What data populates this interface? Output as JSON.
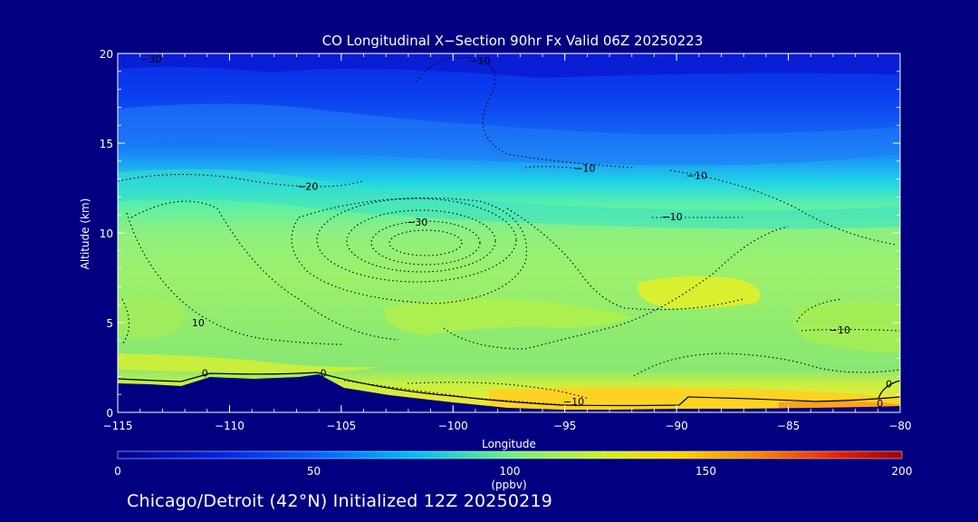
{
  "chart_data": {
    "type": "heatmap",
    "title": "CO Longitudinal X−Section 90hr  Fx Valid 06Z 20250223",
    "xlabel": "Longitude",
    "ylabel": "Altitude (km)",
    "xlim": [
      -115,
      -80
    ],
    "ylim": [
      0,
      20
    ],
    "x_ticks": [
      "−115",
      "−110",
      "−105",
      "−100",
      "−95",
      "−90",
      "−85",
      "−80"
    ],
    "y_ticks": [
      "0",
      "5",
      "10",
      "15",
      "20"
    ],
    "colorbar": {
      "label": "(ppbv)",
      "range": [
        0,
        200
      ],
      "ticks": [
        "0",
        "50",
        "100",
        "150",
        "200"
      ]
    },
    "contour_labels": [
      {
        "text": "−30",
        "lon": -113.5,
        "alt": 19.7
      },
      {
        "text": "−10",
        "lon": -98.8,
        "alt": 19.6
      },
      {
        "text": "−20",
        "lon": -106.5,
        "alt": 12.6
      },
      {
        "text": "−30",
        "lon": -101.6,
        "alt": 10.6
      },
      {
        "text": "−10",
        "lon": -94.1,
        "alt": 13.6
      },
      {
        "text": "−10",
        "lon": -89.1,
        "alt": 13.2
      },
      {
        "text": "−10",
        "lon": -90.2,
        "alt": 10.9
      },
      {
        "text": "10",
        "lon": -111.4,
        "alt": 5.0
      },
      {
        "text": "−10",
        "lon": -82.7,
        "alt": 4.6
      },
      {
        "text": "0",
        "lon": -111.1,
        "alt": 2.2
      },
      {
        "text": "0",
        "lon": -105.8,
        "alt": 2.2
      },
      {
        "text": "−10",
        "lon": -94.6,
        "alt": 0.6
      },
      {
        "text": "0",
        "lon": -80.5,
        "alt": 1.6
      },
      {
        "text": "0",
        "lon": -80.9,
        "alt": 0.5
      }
    ]
  },
  "footer": "Chicago/Detroit (42°N) Initialized 12Z 20250219"
}
